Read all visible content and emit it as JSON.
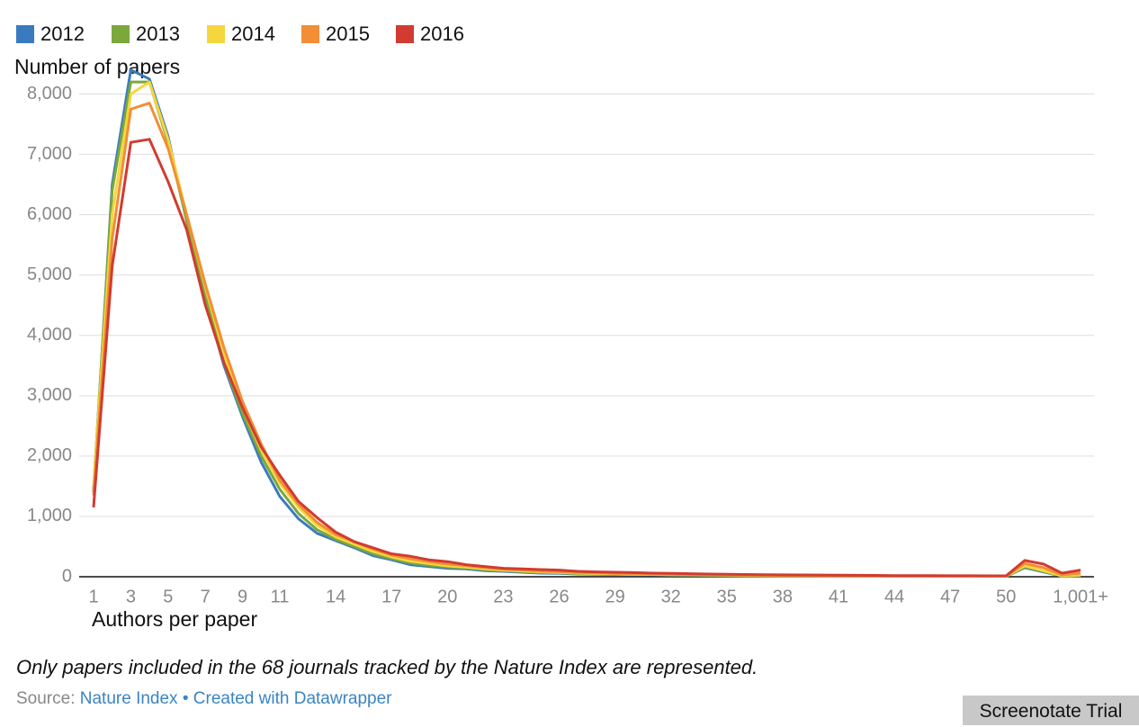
{
  "chart_data": {
    "type": "line",
    "y_label": "Number of papers",
    "x_label": "Authors per paper",
    "note": "Only papers included in the 68 journals tracked by the Nature Index are represented.",
    "source_label": "Source:",
    "source": "Nature Index",
    "separator": "•",
    "credit": "Created with Datawrapper",
    "categories": [
      "1",
      null,
      "3",
      null,
      "5",
      null,
      "7",
      null,
      "9",
      null,
      "11",
      null,
      null,
      "14",
      null,
      null,
      "17",
      null,
      null,
      "20",
      null,
      null,
      "23",
      null,
      null,
      "26",
      null,
      null,
      "29",
      null,
      null,
      "32",
      null,
      null,
      "35",
      null,
      null,
      "38",
      null,
      null,
      "41",
      null,
      null,
      "44",
      null,
      null,
      "47",
      null,
      null,
      "50",
      null,
      null,
      null,
      "1,001+"
    ],
    "ylim": [
      0,
      8500
    ],
    "yticks": [
      0,
      {
        "value": 1000,
        "label": "1,000"
      },
      {
        "value": 2000,
        "label": "2,000"
      },
      {
        "value": 3000,
        "label": "3,000"
      },
      {
        "value": 4000,
        "label": "4,000"
      },
      {
        "value": 5000,
        "label": "5,000"
      },
      {
        "value": 6000,
        "label": "6,000"
      },
      {
        "value": 7000,
        "label": "7,000"
      },
      {
        "value": 8000,
        "label": "8,000"
      }
    ],
    "grid": true,
    "series": [
      {
        "name": "2012",
        "color": "#3a7bbf",
        "values": [
          1400,
          6500,
          8400,
          8250,
          7300,
          5900,
          4600,
          3500,
          2650,
          1900,
          1330,
          960,
          720,
          600,
          480,
          350,
          280,
          200,
          170,
          140,
          130,
          100,
          90,
          75,
          60,
          55,
          45,
          40,
          38,
          32,
          30,
          27,
          25,
          22,
          20,
          18,
          17,
          15,
          14,
          12,
          11,
          10,
          10,
          9,
          8,
          8,
          7,
          7,
          6,
          6,
          150,
          80,
          10,
          20
        ]
      },
      {
        "name": "2013",
        "color": "#7aa83a",
        "values": [
          1450,
          6400,
          8200,
          8200,
          7200,
          5900,
          4650,
          3550,
          2700,
          2000,
          1450,
          1050,
          780,
          620,
          500,
          380,
          300,
          230,
          190,
          160,
          145,
          115,
          100,
          85,
          70,
          62,
          52,
          46,
          42,
          36,
          33,
          30,
          28,
          25,
          22,
          20,
          19,
          17,
          15,
          13,
          12,
          11,
          11,
          10,
          9,
          9,
          8,
          8,
          7,
          7,
          160,
          90,
          12,
          22
        ]
      },
      {
        "name": "2014",
        "color": "#f5d63d",
        "values": [
          1500,
          6000,
          8000,
          8200,
          7250,
          6000,
          4800,
          3700,
          2800,
          2100,
          1550,
          1150,
          850,
          660,
          540,
          420,
          330,
          260,
          220,
          180,
          160,
          130,
          110,
          95,
          80,
          70,
          60,
          52,
          48,
          42,
          38,
          34,
          31,
          28,
          25,
          23,
          21,
          19,
          17,
          15,
          14,
          13,
          12,
          11,
          10,
          10,
          9,
          9,
          8,
          8,
          180,
          100,
          15,
          25
        ]
      },
      {
        "name": "2015",
        "color": "#f28e35",
        "values": [
          1350,
          5600,
          7750,
          7850,
          7100,
          6000,
          4850,
          3800,
          2900,
          2200,
          1600,
          1200,
          900,
          700,
          580,
          460,
          360,
          300,
          250,
          210,
          185,
          150,
          125,
          110,
          95,
          82,
          70,
          62,
          56,
          50,
          45,
          40,
          37,
          33,
          30,
          27,
          25,
          23,
          21,
          19,
          17,
          16,
          15,
          14,
          13,
          12,
          11,
          11,
          10,
          10,
          220,
          150,
          30,
          60
        ]
      },
      {
        "name": "2016",
        "color": "#d13b31",
        "values": [
          1150,
          5150,
          7200,
          7250,
          6550,
          5750,
          4500,
          3550,
          2800,
          2150,
          1680,
          1250,
          980,
          740,
          580,
          480,
          380,
          340,
          280,
          250,
          200,
          170,
          140,
          130,
          120,
          110,
          90,
          80,
          75,
          68,
          60,
          55,
          50,
          45,
          42,
          38,
          35,
          32,
          30,
          28,
          26,
          24,
          22,
          20,
          19,
          18,
          17,
          16,
          15,
          15,
          270,
          210,
          60,
          110
        ]
      }
    ]
  },
  "watermark": "Screenotate Trial"
}
